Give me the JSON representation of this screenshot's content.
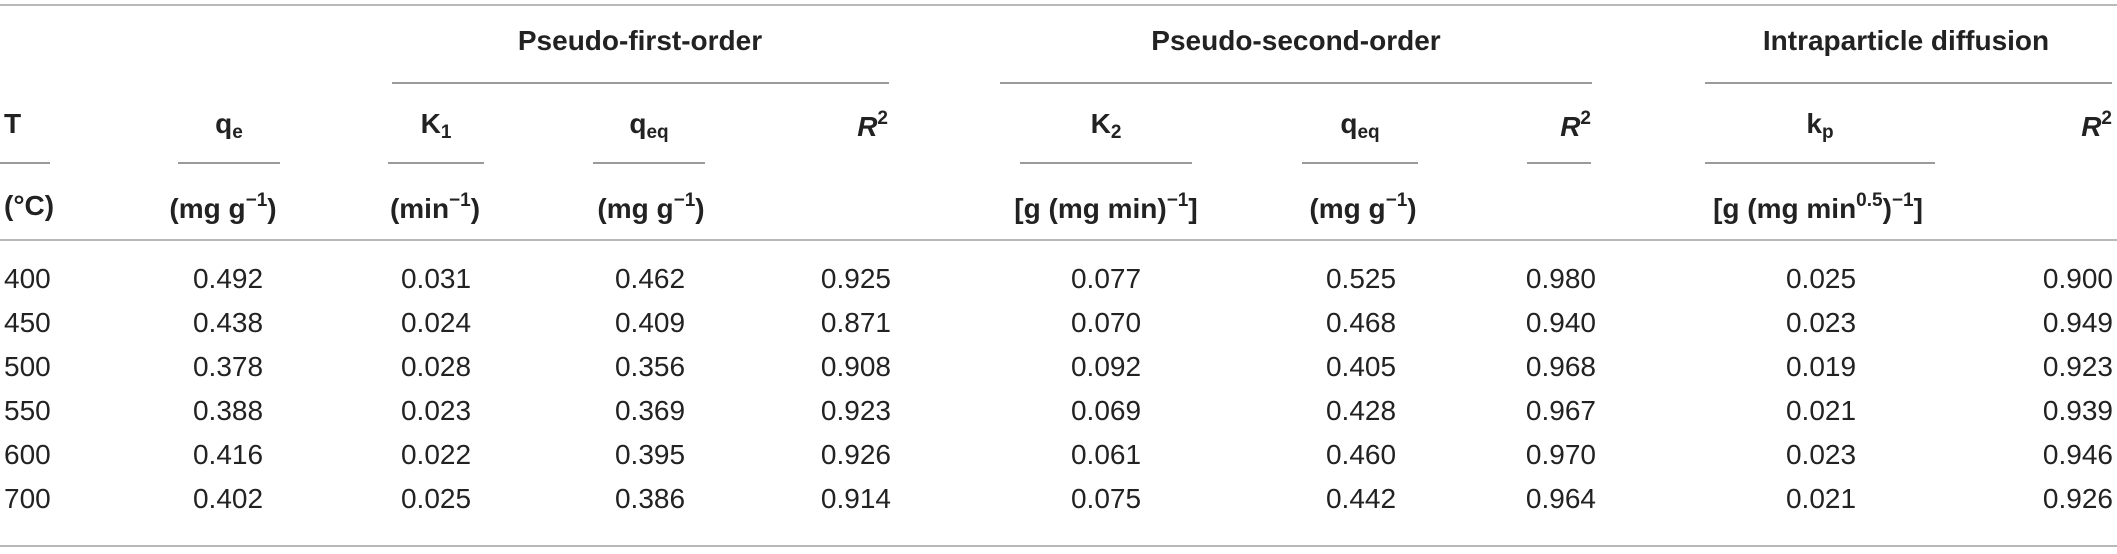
{
  "groups": {
    "pfo": "Pseudo-first-order",
    "pso": "Pseudo-second-order",
    "ipd": "Intraparticle diffusion"
  },
  "headers": {
    "T": "T",
    "qe_base": "q",
    "qe_sub": "e",
    "k1_base": "K",
    "k1_sub": "1",
    "qeq1_base": "q",
    "qeq1_sub": "eq",
    "r2a_base": "R",
    "r2a_sup": "2",
    "k2_base": "K",
    "k2_sub": "2",
    "qeq2_base": "q",
    "qeq2_sub": "eq",
    "r2b_base": "R",
    "r2b_sup": "2",
    "kp_base": "k",
    "kp_sub": "p",
    "r2c_base": "R",
    "r2c_sup": "2"
  },
  "units": {
    "T": "(°C)",
    "qe_a": "(mg g",
    "qe_sup": "−1",
    "qe_b": ")",
    "k1_a": "(min",
    "k1_sup": "−1",
    "k1_b": ")",
    "qeq1_a": "(mg g",
    "qeq1_sup": "−1",
    "qeq1_b": ")",
    "k2_a": "[g (mg min)",
    "k2_sup": "−1",
    "k2_b": "]",
    "qeq2_a": "(mg g",
    "qeq2_sup": "−1",
    "qeq2_b": ")",
    "kp_a": "[g (mg min",
    "kp_sup1": "0.5",
    "kp_b": ")",
    "kp_sup2": "−1",
    "kp_c": "]"
  },
  "rows": [
    [
      "400",
      "0.492",
      "0.031",
      "0.462",
      "0.925",
      "0.077",
      "0.525",
      "0.980",
      "0.025",
      "0.900"
    ],
    [
      "450",
      "0.438",
      "0.024",
      "0.409",
      "0.871",
      "0.070",
      "0.468",
      "0.940",
      "0.023",
      "0.949"
    ],
    [
      "500",
      "0.378",
      "0.028",
      "0.356",
      "0.908",
      "0.092",
      "0.405",
      "0.968",
      "0.019",
      "0.923"
    ],
    [
      "550",
      "0.388",
      "0.023",
      "0.369",
      "0.923",
      "0.069",
      "0.428",
      "0.967",
      "0.021",
      "0.939"
    ],
    [
      "600",
      "0.416",
      "0.022",
      "0.395",
      "0.926",
      "0.061",
      "0.460",
      "0.970",
      "0.023",
      "0.946"
    ],
    [
      "700",
      "0.402",
      "0.025",
      "0.386",
      "0.914",
      "0.075",
      "0.442",
      "0.964",
      "0.021",
      "0.926"
    ]
  ]
}
